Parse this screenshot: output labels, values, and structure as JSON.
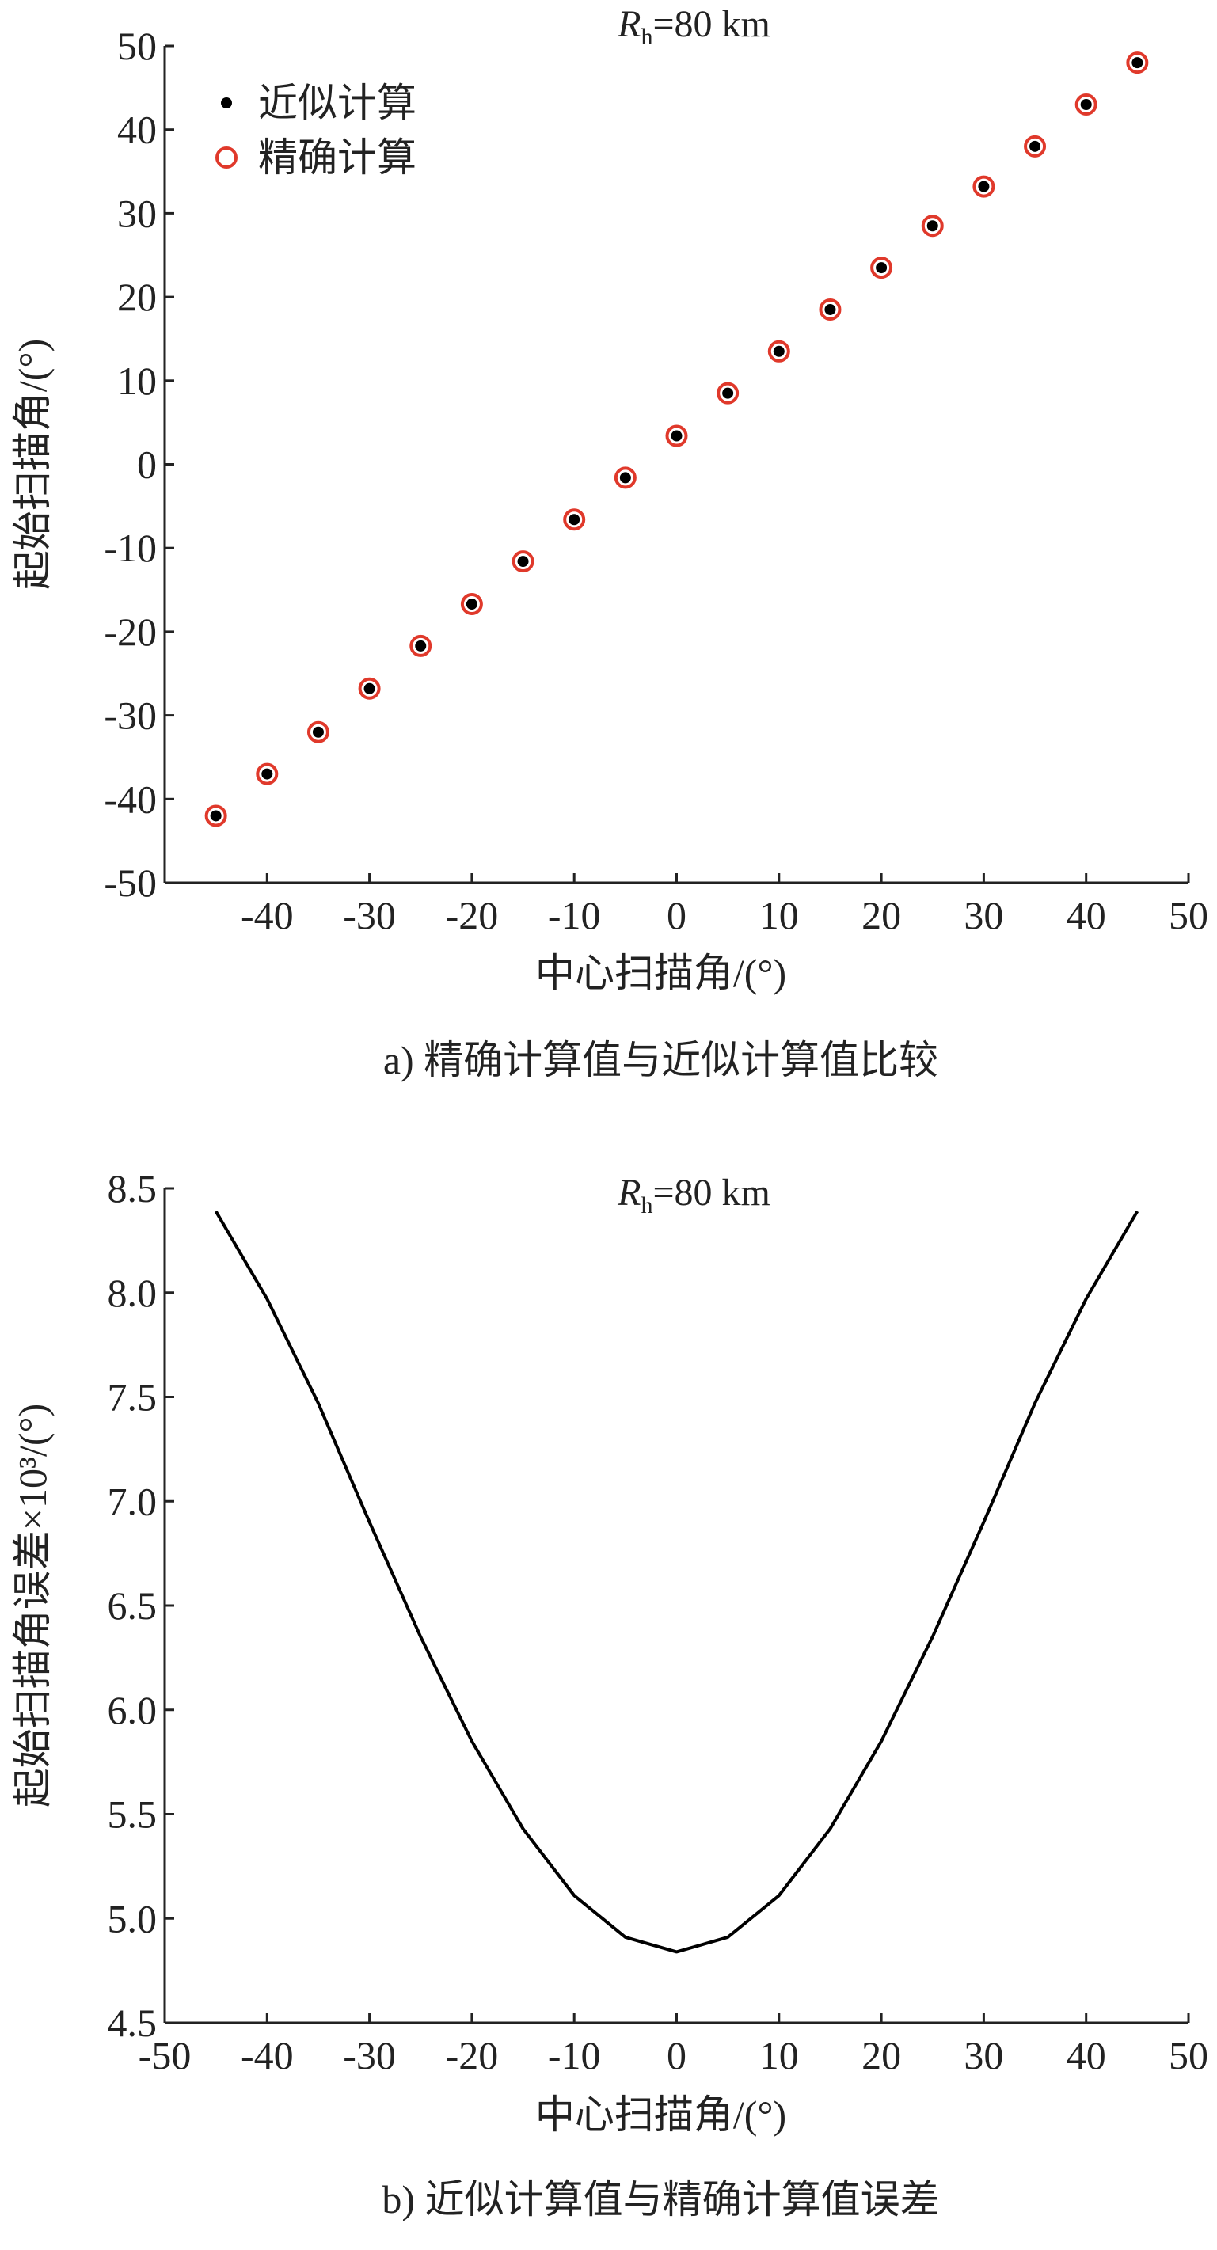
{
  "chart_data": [
    {
      "type": "scatter",
      "title": {
        "symbol": "R",
        "subscript": "h",
        "text": "=80 km"
      },
      "x_label": "中心扫描角/(°)",
      "y_label": "起始扫描角/(°)",
      "caption": "a) 精确计算值与近似计算值比较",
      "x": [
        -45,
        -40,
        -35,
        -30,
        -25,
        -20,
        -15,
        -10,
        -5,
        0,
        5,
        10,
        15,
        20,
        25,
        30,
        35,
        40,
        45
      ],
      "series": [
        {
          "name": "近似计算",
          "color": "#000000",
          "marker": "dot",
          "values": [
            -42,
            -37,
            -32,
            -26.8,
            -21.7,
            -16.7,
            -11.6,
            -6.6,
            -1.6,
            3.4,
            8.5,
            13.5,
            18.5,
            23.5,
            28.5,
            33.2,
            38,
            43,
            48
          ]
        },
        {
          "name": "精确计算",
          "color": "#e0392b",
          "marker": "open-circle",
          "values": [
            -42,
            -37,
            -32,
            -26.8,
            -21.7,
            -16.7,
            -11.6,
            -6.6,
            -1.6,
            3.4,
            8.5,
            13.5,
            18.5,
            23.5,
            28.5,
            33.2,
            38,
            43,
            48
          ]
        }
      ],
      "xlim": [
        -50,
        50
      ],
      "xticks": [
        -40,
        -30,
        -20,
        -10,
        0,
        10,
        20,
        30,
        40,
        50
      ],
      "ylim": [
        -50,
        50
      ],
      "yticks": [
        -50,
        -40,
        -30,
        -20,
        -10,
        0,
        10,
        20,
        30,
        40,
        50
      ],
      "legend": "upper left"
    },
    {
      "type": "line",
      "title": {
        "symbol": "R",
        "subscript": "h",
        "text": "=80 km"
      },
      "x_label": "中心扫描角/(°)",
      "y_label": "起始扫描角误差×10³/(°)",
      "caption": "b) 近似计算值与精确计算值误差",
      "x": [
        -45,
        -40,
        -35,
        -30,
        -25,
        -20,
        -15,
        -10,
        -5,
        0,
        5,
        10,
        15,
        20,
        25,
        30,
        35,
        40,
        45
      ],
      "series": [
        {
          "color": "#000000",
          "values": [
            8.39,
            7.97,
            7.47,
            6.9,
            6.35,
            5.85,
            5.43,
            5.11,
            4.91,
            4.84,
            4.91,
            5.11,
            5.43,
            5.85,
            6.35,
            6.9,
            7.47,
            7.97,
            8.39
          ]
        }
      ],
      "xlim": [
        -50,
        50
      ],
      "xticks": [
        -50,
        -40,
        -30,
        -20,
        -10,
        0,
        10,
        20,
        30,
        40,
        50
      ],
      "ylim": [
        4.5,
        8.5
      ],
      "yticks": [
        {
          "value": 4.5,
          "label": "4.5"
        },
        {
          "value": 5,
          "label": "5.0"
        },
        {
          "value": 5.5,
          "label": "5.5"
        },
        {
          "value": 6,
          "label": "6.0"
        },
        {
          "value": 6.5,
          "label": "6.5"
        },
        {
          "value": 7,
          "label": "7.0"
        },
        {
          "value": 7.5,
          "label": "7.5"
        },
        {
          "value": 8,
          "label": "8.0"
        },
        {
          "value": 8.5,
          "label": "8.5"
        }
      ]
    }
  ]
}
